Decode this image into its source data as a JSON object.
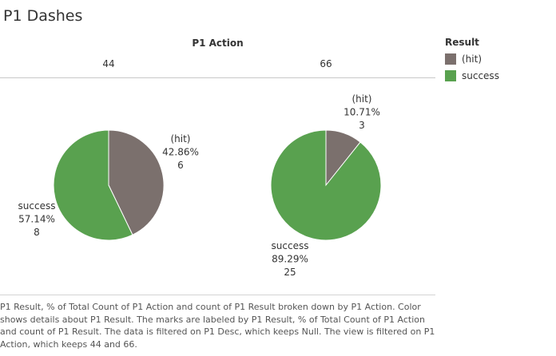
{
  "title": "P1 Dashes",
  "caption": "P1 Result, % of Total Count of P1 Action and count of P1 Result broken down by P1 Action.  Color shows details about P1 Result.  The marks are labeled by P1 Result, % of Total Count of P1 Action and count of P1 Result. The data is filtered on P1 Desc, which keeps Null. The view is filtered on P1 Action, which keeps 44 and 66.",
  "legend": {
    "title": "Result",
    "items": [
      {
        "label": "(hit)",
        "color": "#7b706d"
      },
      {
        "label": "success",
        "color": "#59a14f"
      }
    ]
  },
  "chart_data": {
    "type": "pie",
    "column_header_title": "P1 Action",
    "panels": [
      {
        "category": "44",
        "slices": [
          {
            "name": "(hit)",
            "percent": "42.86%",
            "count": 6,
            "color": "#7b706d"
          },
          {
            "name": "success",
            "percent": "57.14%",
            "count": 8,
            "color": "#59a14f"
          }
        ]
      },
      {
        "category": "66",
        "slices": [
          {
            "name": "(hit)",
            "percent": "10.71%",
            "count": 3,
            "color": "#7b706d"
          },
          {
            "name": "success",
            "percent": "89.29%",
            "count": 25,
            "color": "#59a14f"
          }
        ]
      }
    ]
  }
}
